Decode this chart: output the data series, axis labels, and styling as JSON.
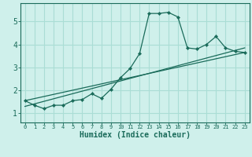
{
  "title": "",
  "xlabel": "Humidex (Indice chaleur)",
  "ylabel": "",
  "bg_color": "#cff0eb",
  "line_color": "#1a6b5a",
  "grid_color": "#aaddd5",
  "xlim": [
    -0.5,
    23.5
  ],
  "ylim": [
    0.6,
    5.8
  ],
  "xticks": [
    0,
    1,
    2,
    3,
    4,
    5,
    6,
    7,
    8,
    9,
    10,
    11,
    12,
    13,
    14,
    15,
    16,
    17,
    18,
    19,
    20,
    21,
    22,
    23
  ],
  "yticks": [
    1,
    2,
    3,
    4,
    5
  ],
  "main_line_x": [
    0,
    1,
    2,
    3,
    4,
    5,
    6,
    7,
    8,
    9,
    10,
    11,
    12,
    13,
    14,
    15,
    16,
    17,
    18,
    19,
    20,
    21,
    22,
    23
  ],
  "main_line_y": [
    1.55,
    1.35,
    1.2,
    1.35,
    1.35,
    1.55,
    1.6,
    1.85,
    1.65,
    2.05,
    2.55,
    2.95,
    3.6,
    5.35,
    5.35,
    5.4,
    5.2,
    3.85,
    3.8,
    4.0,
    4.35,
    3.85,
    3.7,
    3.65
  ],
  "line2_x": [
    0,
    23
  ],
  "line2_y": [
    1.55,
    3.65
  ],
  "line3_x": [
    0,
    23
  ],
  "line3_y": [
    1.3,
    3.85
  ]
}
